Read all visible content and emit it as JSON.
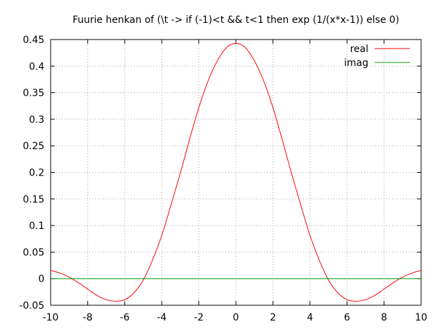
{
  "chart_data": {
    "type": "line",
    "title": "Fuurie henkan of (\\t -> if (-1)<t && t<1 then exp (1/(x*x-1)) else 0)",
    "xlabel": "",
    "ylabel": "",
    "xlim": [
      -10,
      10
    ],
    "ylim": [
      -0.05,
      0.45
    ],
    "xticks": [
      "-10",
      "-8",
      "-6",
      "-4",
      "-2",
      "0",
      "2",
      "4",
      "6",
      "8",
      "10"
    ],
    "yticks": [
      "-0.05",
      "0",
      "0.05",
      "0.1",
      "0.15",
      "0.2",
      "0.25",
      "0.3",
      "0.35",
      "0.4",
      "0.45"
    ],
    "grid": true,
    "legend_position": "top-right",
    "x": [
      -10,
      -9.5,
      -9,
      -8.5,
      -8,
      -7.5,
      -7,
      -6.5,
      -6,
      -5.5,
      -5,
      -4.5,
      -4,
      -3.5,
      -3,
      -2.5,
      -2,
      -1.5,
      -1,
      -0.5,
      0,
      0.5,
      1,
      1.5,
      2,
      2.5,
      3,
      3.5,
      4,
      4.5,
      5,
      5.5,
      6,
      6.5,
      7,
      7.5,
      8,
      8.5,
      9,
      9.5,
      10
    ],
    "series": [
      {
        "name": "real",
        "color": "#ff0000",
        "values": [
          0.0155,
          0.0105,
          0.003,
          -0.0075,
          -0.0195,
          -0.0315,
          -0.0395,
          -0.0425,
          -0.0395,
          -0.0265,
          -0.0025,
          0.035,
          0.0815,
          0.139,
          0.1985,
          0.262,
          0.322,
          0.372,
          0.41,
          0.435,
          0.443,
          0.435,
          0.41,
          0.372,
          0.322,
          0.262,
          0.1985,
          0.139,
          0.0815,
          0.035,
          -0.0025,
          -0.0265,
          -0.0395,
          -0.0425,
          -0.0395,
          -0.0315,
          -0.0195,
          -0.0075,
          0.003,
          0.0105,
          0.0155
        ]
      },
      {
        "name": "imag",
        "color": "#00a000",
        "values": [
          0,
          0,
          0,
          0,
          0,
          0,
          0,
          0,
          0,
          0,
          0,
          0,
          0,
          0,
          0,
          0,
          0,
          0,
          0,
          0,
          0,
          0,
          0,
          0,
          0,
          0,
          0,
          0,
          0,
          0,
          0,
          0,
          0,
          0,
          0,
          0,
          0,
          0,
          0,
          0,
          0
        ]
      }
    ]
  }
}
